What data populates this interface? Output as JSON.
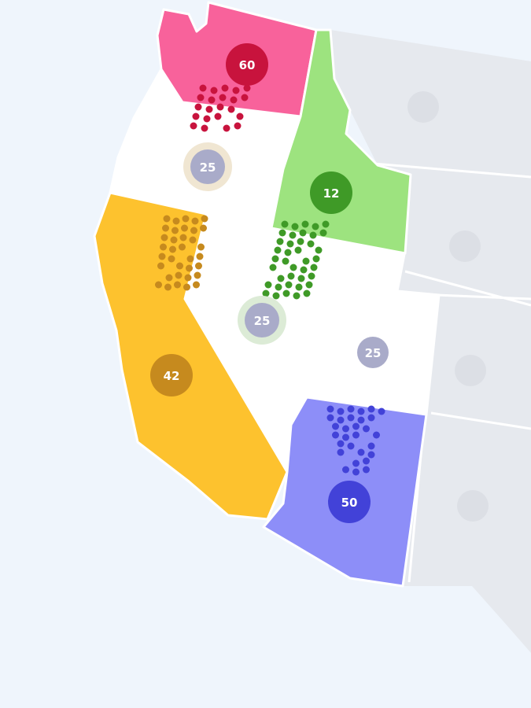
{
  "colors": {
    "background": "#eff5fc",
    "inactive_state": "#e6e9ee",
    "inactive_marker": "#dcdfe5",
    "neutral_state": "#ffffff",
    "neutral_marker": "#a9abc9"
  },
  "states": [
    {
      "id": "washington",
      "fill": "#f8629b",
      "marker_color": "#c8133d",
      "value": "60"
    },
    {
      "id": "oregon",
      "fill": "#ffffff",
      "marker_color": "#a9abc9",
      "halo_color": "#f0e6d2",
      "value": "25"
    },
    {
      "id": "idaho",
      "fill": "#9de37f",
      "marker_color": "#3f9a27",
      "value": "12"
    },
    {
      "id": "california",
      "fill": "#fdc22e",
      "marker_color": "#c68a1e",
      "value": "42"
    },
    {
      "id": "nevada",
      "fill": "#ffffff",
      "marker_color": "#a9abc9",
      "halo_color": "#dcebd6",
      "value": "25"
    },
    {
      "id": "utah",
      "fill": "#ffffff",
      "marker_color": "#a9abc9",
      "value": "25"
    },
    {
      "id": "arizona",
      "fill": "#8d8ef8",
      "marker_color": "#4242d8",
      "value": "50"
    }
  ],
  "flows": [
    {
      "from": "washington",
      "color": "#c8133d"
    },
    {
      "from": "california",
      "color": "#c68a1e"
    },
    {
      "from": "idaho",
      "color": "#3f9a27"
    },
    {
      "from": "arizona",
      "color": "#4242d8"
    }
  ]
}
